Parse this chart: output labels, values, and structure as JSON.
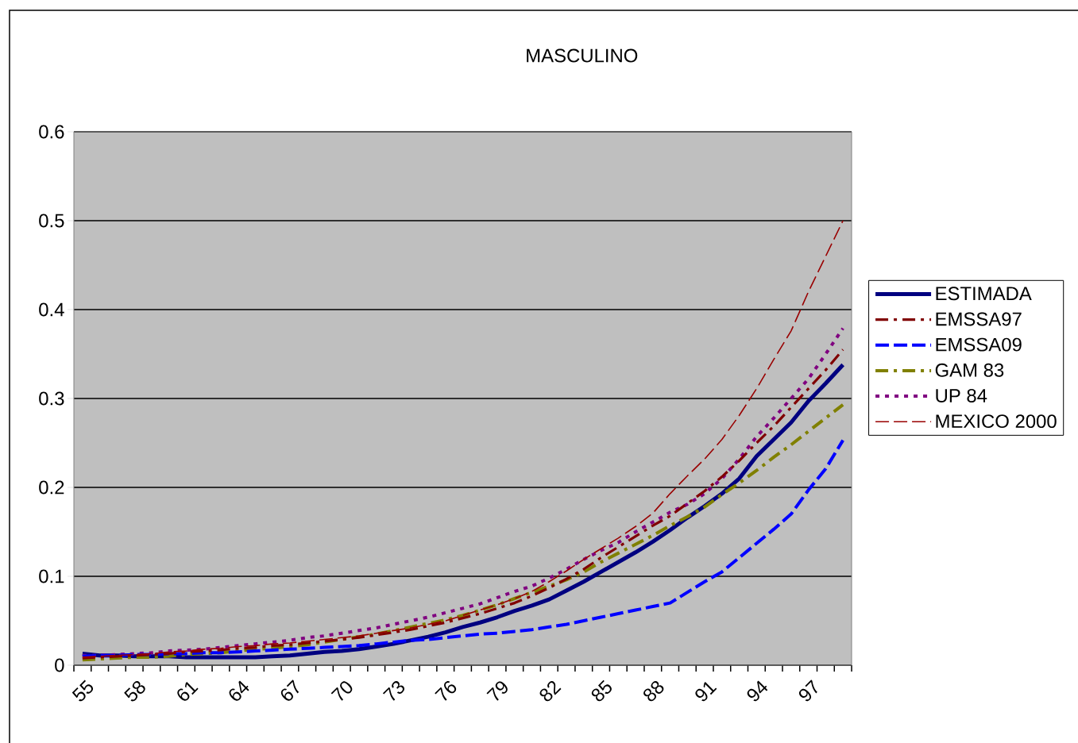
{
  "chart_data": {
    "type": "line",
    "title": "MASCULINO",
    "categories": [
      "55",
      null,
      null,
      "58",
      null,
      null,
      "61",
      null,
      null,
      "64",
      null,
      null,
      "67",
      null,
      null,
      "70",
      null,
      null,
      "73",
      null,
      null,
      "76",
      null,
      null,
      "79",
      null,
      null,
      "82",
      null,
      null,
      "85",
      null,
      null,
      "88",
      null,
      null,
      "91",
      null,
      null,
      "94",
      null,
      null,
      "97",
      null,
      null
    ],
    "ylim": [
      0,
      0.6
    ],
    "yticks": [
      0,
      0.1,
      0.2,
      0.3,
      0.4,
      0.5,
      0.6
    ],
    "grid": "y",
    "legend": "right",
    "marker": "none",
    "series": [
      {
        "name": "ESTIMADA",
        "color": "#000080",
        "line_style": "solid",
        "values": [
          0.013,
          0.011,
          0.011,
          0.01,
          0.01,
          0.01,
          0.009,
          0.009,
          0.009,
          0.009,
          0.009,
          0.01,
          0.011,
          0.013,
          0.015,
          0.016,
          0.018,
          0.021,
          0.024,
          0.028,
          0.032,
          0.037,
          0.043,
          0.048,
          0.054,
          0.061,
          0.067,
          0.074,
          0.084,
          0.094,
          0.105,
          0.116,
          0.127,
          0.139,
          0.152,
          0.166,
          0.179,
          0.193,
          0.21,
          0.235,
          0.254,
          0.273,
          0.297,
          0.317,
          0.338
        ]
      },
      {
        "name": "EMSSA97",
        "color": "#800000",
        "line_style": "dashdot",
        "values": [
          0.008,
          0.009,
          0.01,
          0.011,
          0.012,
          0.013,
          0.015,
          0.016,
          0.017,
          0.019,
          0.02,
          0.022,
          0.023,
          0.025,
          0.027,
          0.029,
          0.031,
          0.034,
          0.037,
          0.04,
          0.044,
          0.048,
          0.053,
          0.058,
          0.064,
          0.07,
          0.078,
          0.087,
          0.097,
          0.108,
          0.121,
          0.133,
          0.145,
          0.157,
          0.168,
          0.182,
          0.196,
          0.212,
          0.23,
          0.25,
          0.269,
          0.29,
          0.311,
          0.332,
          0.355
        ]
      },
      {
        "name": "EMSSA09",
        "color": "#0000ff",
        "line_style": "dashed",
        "values": [
          0.01,
          0.011,
          0.011,
          0.012,
          0.012,
          0.013,
          0.013,
          0.014,
          0.014,
          0.015,
          0.016,
          0.017,
          0.018,
          0.019,
          0.02,
          0.021,
          0.022,
          0.024,
          0.026,
          0.028,
          0.029,
          0.031,
          0.033,
          0.035,
          0.036,
          0.038,
          0.04,
          0.043,
          0.046,
          0.05,
          0.054,
          0.058,
          0.062,
          0.066,
          0.07,
          0.082,
          0.094,
          0.105,
          0.121,
          0.137,
          0.153,
          0.17,
          0.197,
          0.221,
          0.253
        ]
      },
      {
        "name": "GAM 83",
        "color": "#808000",
        "line_style": "dashdot",
        "values": [
          0.006,
          0.007,
          0.008,
          0.009,
          0.009,
          0.01,
          0.012,
          0.013,
          0.014,
          0.016,
          0.018,
          0.019,
          0.021,
          0.023,
          0.026,
          0.029,
          0.032,
          0.035,
          0.039,
          0.043,
          0.047,
          0.051,
          0.056,
          0.062,
          0.068,
          0.075,
          0.082,
          0.089,
          0.096,
          0.105,
          0.116,
          0.126,
          0.136,
          0.146,
          0.157,
          0.167,
          0.178,
          0.192,
          0.205,
          0.219,
          0.234,
          0.248,
          0.263,
          0.278,
          0.293
        ]
      },
      {
        "name": "UP 84",
        "color": "#800080",
        "line_style": "dotted",
        "values": [
          0.011,
          0.011,
          0.012,
          0.013,
          0.014,
          0.016,
          0.017,
          0.018,
          0.02,
          0.022,
          0.024,
          0.026,
          0.028,
          0.031,
          0.033,
          0.036,
          0.039,
          0.042,
          0.046,
          0.05,
          0.054,
          0.059,
          0.064,
          0.069,
          0.076,
          0.083,
          0.089,
          0.098,
          0.108,
          0.119,
          0.129,
          0.138,
          0.15,
          0.161,
          0.172,
          0.181,
          0.193,
          0.21,
          0.232,
          0.257,
          0.278,
          0.3,
          0.322,
          0.35,
          0.379
        ]
      },
      {
        "name": "MEXICO 2000",
        "color": "#990000",
        "line_style": "dashed",
        "values": [
          0.009,
          0.01,
          0.011,
          0.012,
          0.013,
          0.015,
          0.016,
          0.018,
          0.019,
          0.021,
          0.022,
          0.024,
          0.025,
          0.027,
          0.029,
          0.031,
          0.033,
          0.036,
          0.039,
          0.042,
          0.046,
          0.05,
          0.056,
          0.062,
          0.068,
          0.075,
          0.083,
          0.094,
          0.106,
          0.119,
          0.131,
          0.143,
          0.156,
          0.171,
          0.193,
          0.213,
          0.232,
          0.254,
          0.281,
          0.311,
          0.344,
          0.376,
          0.42,
          0.46,
          0.5
        ]
      }
    ]
  }
}
